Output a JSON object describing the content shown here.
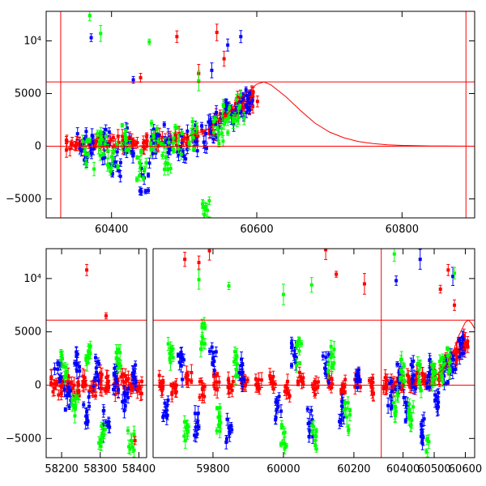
{
  "chart_data": [
    {
      "type": "scatter",
      "title": "",
      "xlabel": "",
      "ylabel": "",
      "xlim": [
        60310,
        60900
      ],
      "ylim": [
        -6800,
        12800
      ],
      "xticks": [
        60400,
        60600,
        60800
      ],
      "xtick_labels": [
        "60400",
        "60600",
        "60800"
      ],
      "yticks": [
        -5000,
        0,
        5000,
        10000
      ],
      "ytick_labels": [
        "−5000",
        "0",
        "5000",
        "10⁴"
      ],
      "grid": false,
      "hlines": [
        0,
        6100
      ],
      "vlines": [
        60330,
        60888
      ],
      "colors": {
        "red": "#ff0000",
        "blue": "#0000ff",
        "green": "#00ff00",
        "model": "#ff0000"
      },
      "series": [
        {
          "color": "red",
          "x": [
            60345,
            60362,
            60378,
            60395,
            60410,
            60430,
            60448,
            60465,
            60482,
            60500,
            60518,
            60535,
            60550,
            60562,
            60572,
            60580,
            60588,
            60593
          ],
          "y": [
            150,
            100,
            250,
            200,
            350,
            500,
            400,
            600,
            700,
            800,
            1000,
            1500,
            2500,
            3200,
            3800,
            4200,
            4600,
            4000
          ]
        },
        {
          "color": "blue",
          "x": [
            60360,
            60372,
            60390,
            60405,
            60425,
            60445,
            60460,
            60478,
            60495,
            60512,
            60530,
            60548,
            60565,
            60578,
            60590
          ],
          "y": [
            50,
            -300,
            200,
            -1500,
            400,
            -3000,
            300,
            700,
            -200,
            900,
            1200,
            1800,
            3000,
            4300,
            4100
          ]
        },
        {
          "color": "green",
          "x": [
            60368,
            60385,
            60402,
            60420,
            60440,
            60458,
            60475,
            60492,
            60510,
            60528,
            60546,
            60560,
            60575
          ],
          "y": [
            -800,
            300,
            -1200,
            600,
            -1800,
            900,
            -1000,
            500,
            1100,
            -6500,
            1600,
            2600,
            3600
          ]
        },
        {
          "color": "red",
          "x": [
            60440,
            60490,
            60520,
            60545,
            60555
          ],
          "y": [
            6500,
            10400,
            6900,
            10800,
            8300
          ]
        },
        {
          "color": "blue",
          "x": [
            60372,
            60430,
            60538,
            60560,
            60578
          ],
          "y": [
            10300,
            6300,
            7200,
            9600,
            10400
          ]
        },
        {
          "color": "green",
          "x": [
            60370,
            60385,
            60452,
            60520
          ],
          "y": [
            12400,
            10700,
            9900,
            6200
          ]
        }
      ],
      "model_curve": {
        "x": [
          60500,
          60530,
          60560,
          60580,
          60600,
          60610,
          60620,
          60640,
          60660,
          60680,
          60700,
          60720,
          60740,
          60760,
          60780,
          60800,
          60820,
          60840,
          60860,
          60880,
          60900
        ],
        "y": [
          800,
          1500,
          3100,
          4700,
          5900,
          6100,
          5800,
          4700,
          3400,
          2200,
          1350,
          800,
          450,
          250,
          140,
          80,
          45,
          25,
          15,
          8,
          5
        ]
      }
    },
    {
      "type": "scatter",
      "title": "",
      "xlabel": "",
      "ylabel": "",
      "segments": [
        {
          "xlim": [
            58160,
            58420
          ],
          "xticks": [
            58200,
            58300,
            58400
          ],
          "xtick_labels": [
            "58200",
            "58300",
            "58400"
          ]
        },
        {
          "xlim": [
            59630,
            60260
          ],
          "xticks": [
            59800,
            60000,
            60200
          ],
          "xtick_labels": [
            "59800",
            "60000",
            "60200"
          ]
        },
        {
          "xlim": [
            60310,
            60630
          ],
          "xticks": [
            60400,
            60500,
            60600
          ],
          "xtick_labels": [
            "60400",
            "60500",
            "60600"
          ]
        }
      ],
      "ylim": [
        -6800,
        12800
      ],
      "yticks": [
        -5000,
        0,
        5000,
        10000
      ],
      "ytick_labels": [
        "−5000",
        "0",
        "5000",
        "10⁴"
      ],
      "grid": false,
      "hlines": [
        0,
        6100
      ],
      "vlines": [
        60330
      ],
      "series": [
        {
          "color": "red",
          "x": [
            58180,
            58200,
            58220,
            58240,
            58260,
            58280,
            58300,
            58320,
            58340,
            58360,
            58380,
            58400
          ],
          "y": [
            100,
            -200,
            300,
            -500,
            200,
            -300,
            400,
            100,
            -200,
            300,
            100,
            -100
          ]
        },
        {
          "color": "blue",
          "x": [
            58190,
            58215,
            58240,
            58265,
            58290,
            58315,
            58340,
            58365,
            58390
          ],
          "y": [
            1500,
            -1000,
            2000,
            -2500,
            1200,
            -3500,
            800,
            -1500,
            600
          ]
        },
        {
          "color": "green",
          "x": [
            58205,
            58235,
            58270,
            58305,
            58345,
            58380
          ],
          "y": [
            1800,
            -2200,
            3000,
            -4500,
            2500,
            -5200
          ]
        },
        {
          "color": "red",
          "x": [
            58265,
            58315,
            58390
          ],
          "y": [
            10800,
            6500,
            -5200
          ]
        },
        {
          "color": "red",
          "x": [
            59650,
            59690,
            59730,
            59770,
            59810,
            59850,
            59890,
            59930,
            59970,
            60010,
            60050,
            60090,
            60130,
            60170,
            60210,
            60250
          ],
          "y": [
            200,
            -300,
            500,
            -400,
            300,
            -200,
            400,
            -100,
            200,
            -300,
            500,
            -400,
            300,
            -200,
            400,
            -100
          ]
        },
        {
          "color": "blue",
          "x": [
            59665,
            59710,
            59755,
            59800,
            59845,
            59880,
            59985,
            60030,
            60075,
            60120,
            60165,
            60210
          ],
          "y": [
            -2500,
            1800,
            -3500,
            2500,
            -4000,
            1200,
            -2000,
            2800,
            -3500,
            1500,
            -2800,
            1000
          ]
        },
        {
          "color": "green",
          "x": [
            59680,
            59725,
            59770,
            59815,
            59860,
            60000,
            60045,
            60090,
            60135,
            60180
          ],
          "y": [
            3500,
            -4200,
            4500,
            -3000,
            2200,
            -4500,
            3200,
            -5200,
            2600,
            -3000
          ]
        },
        {
          "color": "red",
          "x": [
            59720,
            59760,
            59790,
            60120,
            60150,
            60230
          ],
          "y": [
            11800,
            11500,
            12600,
            12700,
            10400,
            9500
          ]
        },
        {
          "color": "green",
          "x": [
            59760,
            59845,
            60000,
            60080
          ],
          "y": [
            9900,
            9300,
            8500,
            9400
          ]
        },
        {
          "color": "red",
          "x": [
            60345,
            60370,
            60395,
            60420,
            60445,
            60470,
            60495,
            60520,
            60545,
            60570,
            60590,
            60600
          ],
          "y": [
            100,
            200,
            300,
            400,
            500,
            800,
            700,
            1200,
            1800,
            2800,
            3600,
            4000
          ]
        },
        {
          "color": "blue",
          "x": [
            60360,
            60385,
            60410,
            60435,
            60460,
            60485,
            60510,
            60535,
            60560,
            60585
          ],
          "y": [
            -1000,
            600,
            -2500,
            900,
            -4500,
            1100,
            -2000,
            1500,
            2600,
            3900
          ]
        },
        {
          "color": "green",
          "x": [
            60375,
            60400,
            60425,
            60450,
            60475,
            60500,
            60525,
            60550
          ],
          "y": [
            -2000,
            1200,
            -3000,
            800,
            -6200,
            900,
            1400,
            2200
          ]
        },
        {
          "color": "red",
          "x": [
            60520,
            60545,
            60565
          ],
          "y": [
            9000,
            10800,
            7500
          ]
        },
        {
          "color": "blue",
          "x": [
            60378,
            60455,
            60560
          ],
          "y": [
            9800,
            11800,
            10200
          ]
        },
        {
          "color": "green",
          "x": [
            60372,
            60565
          ],
          "y": [
            12300,
            10500
          ]
        }
      ],
      "model_curve": {
        "x": [
          60500,
          60530,
          60560,
          60580,
          60600,
          60610,
          60620,
          60630
        ],
        "y": [
          800,
          1500,
          3100,
          4700,
          5900,
          6100,
          5800,
          5300
        ]
      }
    }
  ]
}
